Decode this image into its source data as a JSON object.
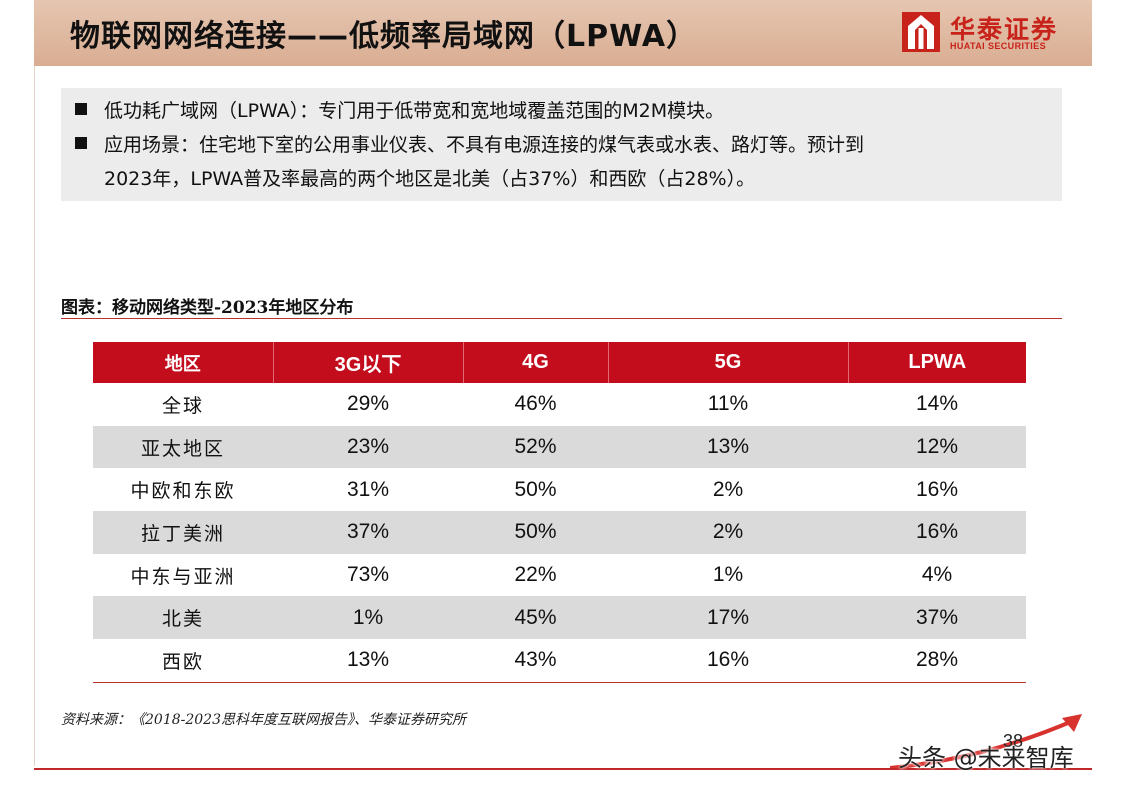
{
  "header": {
    "title": "物联网网络连接——低频率局域网（LPWA）",
    "logo_cn": "华泰证券",
    "logo_en": "HUATAI SECURITIES",
    "accent_color": "#c8231b",
    "bar_color": "#dcb39a"
  },
  "intro": {
    "bullet1": "低功耗广域网（LPWA）：专门用于低带宽和宽地域覆盖范围的M2M模块。",
    "bullet2_line1": "应用场景：住宅地下室的公用事业仪表、不具有电源连接的煤气表或水表、路灯等。预计到",
    "bullet2_line2": "2023年，LPWA普及率最高的两个地区是北美（占37%）和西欧（占28%）。"
  },
  "caption": "图表：移动网络类型-2023年地区分布",
  "table": {
    "header_color": "#c30d1c",
    "headers": [
      "地区",
      "3G以下",
      "4G",
      "5G",
      "LPWA"
    ],
    "rows": [
      [
        "全球",
        "29%",
        "46%",
        "11%",
        "14%"
      ],
      [
        "亚太地区",
        "23%",
        "52%",
        "13%",
        "12%"
      ],
      [
        "中欧和东欧",
        "31%",
        "50%",
        "2%",
        "16%"
      ],
      [
        "拉丁美洲",
        "37%",
        "50%",
        "2%",
        "16%"
      ],
      [
        "中东与亚洲",
        "73%",
        "22%",
        "1%",
        "4%"
      ],
      [
        "北美",
        "1%",
        "45%",
        "17%",
        "37%"
      ],
      [
        "西欧",
        "13%",
        "43%",
        "16%",
        "28%"
      ]
    ]
  },
  "source": "资料来源：《2018-2023思科年度互联网报告》、华泰证券研究所",
  "page_number": "38",
  "watermark": "头条 @未来智库"
}
